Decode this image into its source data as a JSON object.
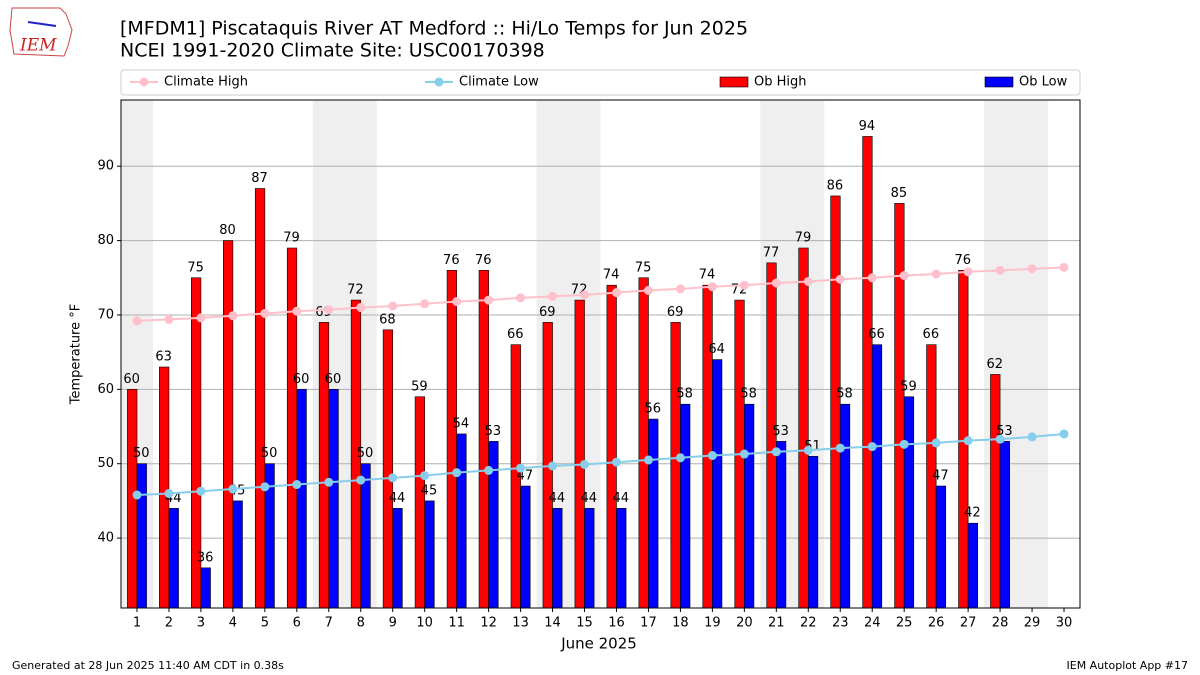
{
  "chart_data": {
    "type": "bar",
    "title": "[MFDM1] Piscataquis River  AT Medford :: Hi/Lo Temps for Jun 2025",
    "subtitle": "NCEI 1991-2020 Climate Site: USC00170398",
    "logo_text": "IEM",
    "xlabel": "June 2025",
    "ylabel": "Temperature °F",
    "footer_left": "Generated at 28 Jun 2025 11:40 AM CDT in 0.38s",
    "footer_right": "IEM Autoplot App #17",
    "x": [
      1,
      2,
      3,
      4,
      5,
      6,
      7,
      8,
      9,
      10,
      11,
      12,
      13,
      14,
      15,
      16,
      17,
      18,
      19,
      20,
      21,
      22,
      23,
      24,
      25,
      26,
      27,
      28,
      29,
      30
    ],
    "xlim": [
      0.5,
      30.5
    ],
    "xticks": [
      1,
      2,
      3,
      4,
      5,
      6,
      7,
      8,
      9,
      10,
      11,
      12,
      13,
      14,
      15,
      16,
      17,
      18,
      19,
      20,
      21,
      22,
      23,
      24,
      25,
      26,
      27,
      28,
      29,
      30
    ],
    "ylim": [
      30.6,
      98.9
    ],
    "yticks": [
      40,
      50,
      60,
      70,
      80,
      90
    ],
    "grid": true,
    "legend": "top",
    "weekend_days": [
      1,
      7,
      8,
      14,
      15,
      21,
      22,
      28,
      29
    ],
    "weekend_color": "#efefef",
    "series": [
      {
        "name": "Climate High",
        "type": "line",
        "color": "#ffc0cb",
        "values": [
          69.2,
          69.4,
          69.6,
          69.9,
          70.2,
          70.5,
          70.7,
          71.0,
          71.2,
          71.5,
          71.8,
          72.0,
          72.3,
          72.5,
          72.7,
          73.0,
          73.3,
          73.5,
          73.8,
          74.0,
          74.3,
          74.5,
          74.8,
          75.0,
          75.3,
          75.5,
          75.8,
          76.0,
          76.2,
          76.4
        ]
      },
      {
        "name": "Climate Low",
        "type": "line",
        "color": "#87ceeb",
        "values": [
          45.8,
          46.0,
          46.3,
          46.6,
          46.9,
          47.2,
          47.5,
          47.8,
          48.1,
          48.4,
          48.8,
          49.1,
          49.4,
          49.7,
          49.9,
          50.2,
          50.5,
          50.8,
          51.1,
          51.3,
          51.6,
          51.8,
          52.1,
          52.3,
          52.6,
          52.8,
          53.1,
          53.3,
          53.6,
          54.0
        ]
      },
      {
        "name": "Ob High",
        "type": "bar",
        "color": "#ff0000",
        "values": [
          60,
          63,
          75,
          80,
          87,
          79,
          69,
          72,
          68,
          59,
          76,
          76,
          66,
          69,
          72,
          74,
          75,
          69,
          74,
          72,
          77,
          79,
          86,
          94,
          85,
          66,
          76,
          62,
          null,
          null
        ]
      },
      {
        "name": "Ob Low",
        "type": "bar",
        "color": "#0000ff",
        "values": [
          50,
          44,
          36,
          45,
          50,
          60,
          60,
          50,
          44,
          45,
          54,
          53,
          47,
          44,
          44,
          44,
          56,
          58,
          64,
          58,
          53,
          51,
          58,
          66,
          59,
          47,
          42,
          53,
          null,
          null
        ]
      }
    ]
  }
}
